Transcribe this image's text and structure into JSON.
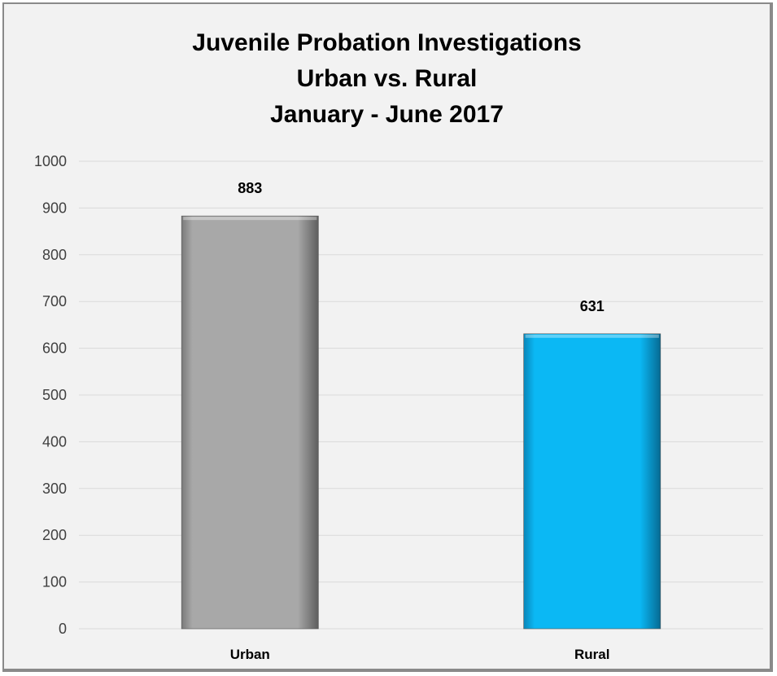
{
  "chart_data": {
    "type": "bar",
    "title_lines": [
      "Juvenile Probation Investigations",
      "Urban vs. Rural",
      "January - June 2017"
    ],
    "categories": [
      "Urban",
      "Rural"
    ],
    "values": [
      883,
      631
    ],
    "data_labels": [
      "883",
      "631"
    ],
    "bar_colors": [
      "#a6a6a6",
      "#0bb4f0"
    ],
    "ylim": [
      0,
      1000
    ],
    "yticks": [
      0,
      100,
      200,
      300,
      400,
      500,
      600,
      700,
      800,
      900,
      1000
    ],
    "xlabel": "",
    "ylabel": "",
    "grid": true,
    "legend": "none"
  }
}
